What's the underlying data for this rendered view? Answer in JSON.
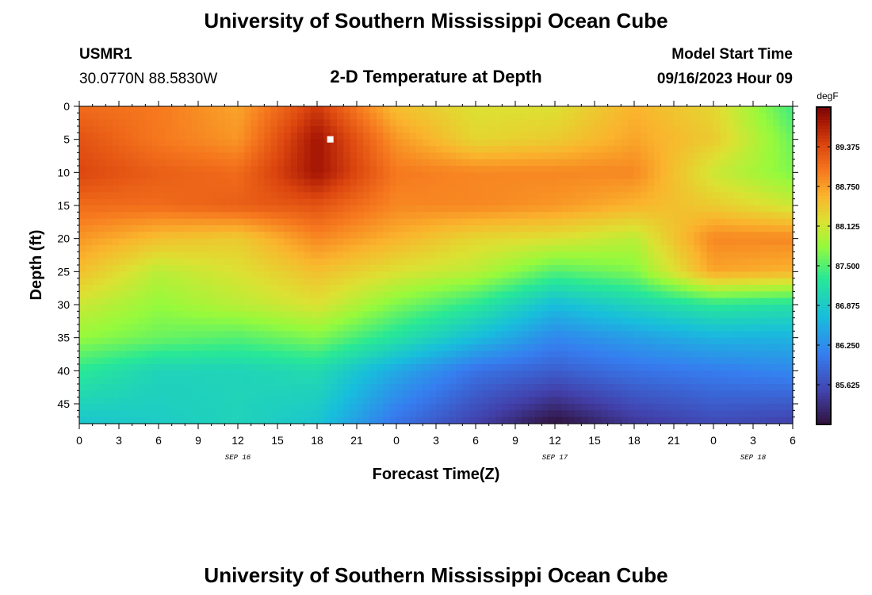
{
  "header": {
    "title": "University of Southern Mississippi Ocean Cube",
    "station": "USMR1",
    "coords": "30.0770N  88.5830W",
    "plot_title": "2-D Temperature at Depth",
    "model_label": "Model Start Time",
    "model_time": "09/16/2023 Hour 09"
  },
  "footer": {
    "title": "University of Southern Mississippi Ocean Cube"
  },
  "chart_data": {
    "type": "heatmap",
    "title": "2-D Temperature at Depth",
    "xlabel": "Forecast Time(Z)",
    "ylabel": "Depth (ft)",
    "x_range_hours": [
      0,
      54
    ],
    "y_range": [
      0,
      48
    ],
    "x_tick_labels": [
      "0",
      "3",
      "6",
      "9",
      "12",
      "15",
      "18",
      "21",
      "0",
      "3",
      "6",
      "9",
      "12",
      "15",
      "18",
      "21",
      "0",
      "3",
      "6"
    ],
    "y_ticks": [
      0,
      5,
      10,
      15,
      20,
      25,
      30,
      35,
      40,
      45
    ],
    "date_labels": [
      {
        "text": "SEP 16",
        "hour": 12
      },
      {
        "text": "SEP 17",
        "hour": 36
      },
      {
        "text": "SEP 18",
        "hour": 51
      }
    ],
    "colorbar": {
      "unit": "degF",
      "min": 85.0,
      "max": 90.0,
      "ticks": [
        "89.375",
        "88.750",
        "88.125",
        "87.500",
        "86.875",
        "86.250",
        "85.625"
      ]
    },
    "grid_x_hours": [
      0,
      6,
      12,
      18,
      24,
      30,
      36,
      42,
      48,
      54
    ],
    "grid_depths_ft": [
      0,
      5,
      10,
      15,
      20,
      25,
      30,
      35,
      40,
      48
    ],
    "values_degF": [
      [
        89.1,
        89.0,
        88.7,
        89.5,
        88.5,
        88.2,
        88.2,
        88.6,
        88.3,
        87.4
      ],
      [
        89.3,
        89.0,
        88.8,
        89.8,
        88.8,
        88.3,
        88.4,
        88.7,
        88.4,
        87.6
      ],
      [
        89.4,
        89.2,
        89.1,
        89.8,
        89.0,
        88.9,
        88.9,
        88.9,
        88.1,
        87.7
      ],
      [
        89.1,
        89.1,
        89.2,
        89.3,
        88.9,
        88.9,
        88.8,
        88.6,
        88.4,
        88.1
      ],
      [
        88.8,
        88.5,
        88.4,
        88.9,
        88.6,
        88.3,
        88.2,
        88.0,
        88.9,
        88.9
      ],
      [
        88.5,
        88.0,
        88.2,
        88.5,
        88.2,
        88.0,
        87.5,
        87.7,
        88.7,
        88.6
      ],
      [
        88.1,
        87.8,
        88.0,
        88.2,
        87.7,
        87.3,
        86.7,
        87.0,
        87.3,
        87.2
      ],
      [
        87.8,
        87.6,
        87.5,
        87.7,
        87.2,
        86.7,
        86.2,
        86.4,
        86.6,
        86.6
      ],
      [
        87.3,
        87.0,
        87.0,
        87.1,
        86.5,
        86.0,
        85.8,
        86.0,
        86.1,
        86.2
      ],
      [
        86.8,
        86.9,
        87.0,
        86.8,
        86.0,
        85.5,
        85.0,
        85.4,
        85.6,
        85.5
      ]
    ],
    "marker": {
      "hour": 19,
      "depth": 5
    }
  }
}
